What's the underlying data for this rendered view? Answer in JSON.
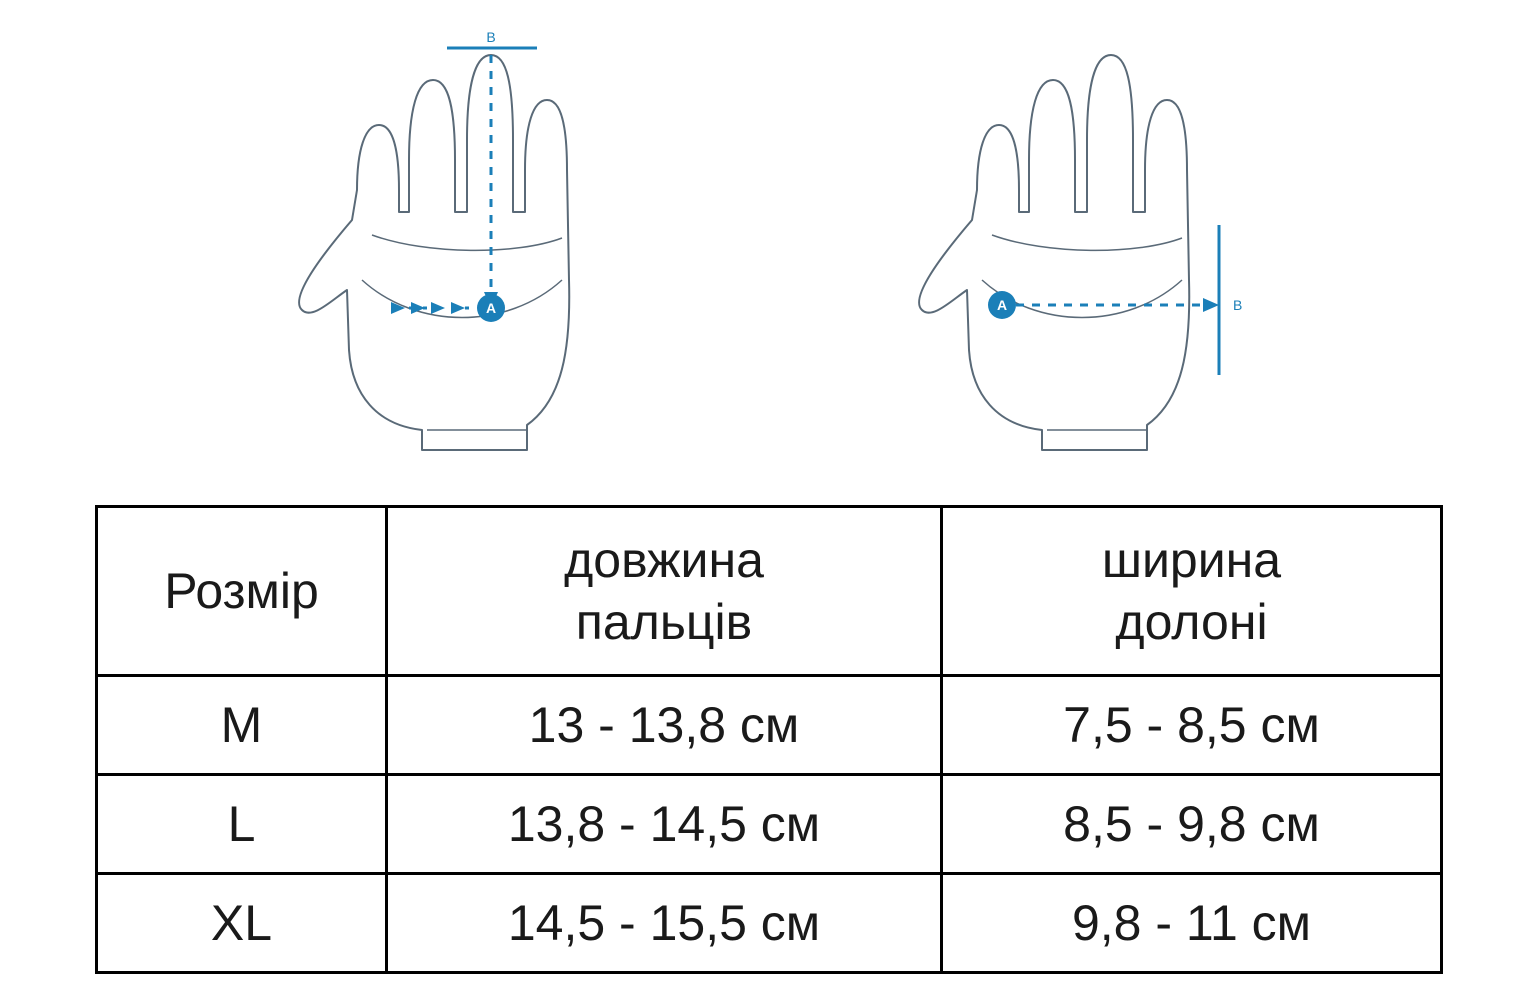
{
  "diagram": {
    "label_A": "A",
    "label_B": "B",
    "accent_color": "#1b7fb8",
    "outline_color": "#5a6a78",
    "outline_width": 2
  },
  "table": {
    "border_color": "#000000",
    "columns": [
      {
        "key": "size",
        "header": "Розмір"
      },
      {
        "key": "finger",
        "header": "довжина\nпальців"
      },
      {
        "key": "palm",
        "header": "ширина\nдолоні"
      }
    ],
    "rows": [
      {
        "size": "M",
        "finger": "13 - 13,8 см",
        "palm": "7,5 - 8,5 см"
      },
      {
        "size": "L",
        "finger": "13,8 - 14,5 см",
        "palm": "8,5 - 9,8 см"
      },
      {
        "size": "XL",
        "finger": "14,5 - 15,5 см",
        "palm": "9,8 - 11 см"
      }
    ],
    "header_fontsize": 50,
    "cell_fontsize": 50
  }
}
